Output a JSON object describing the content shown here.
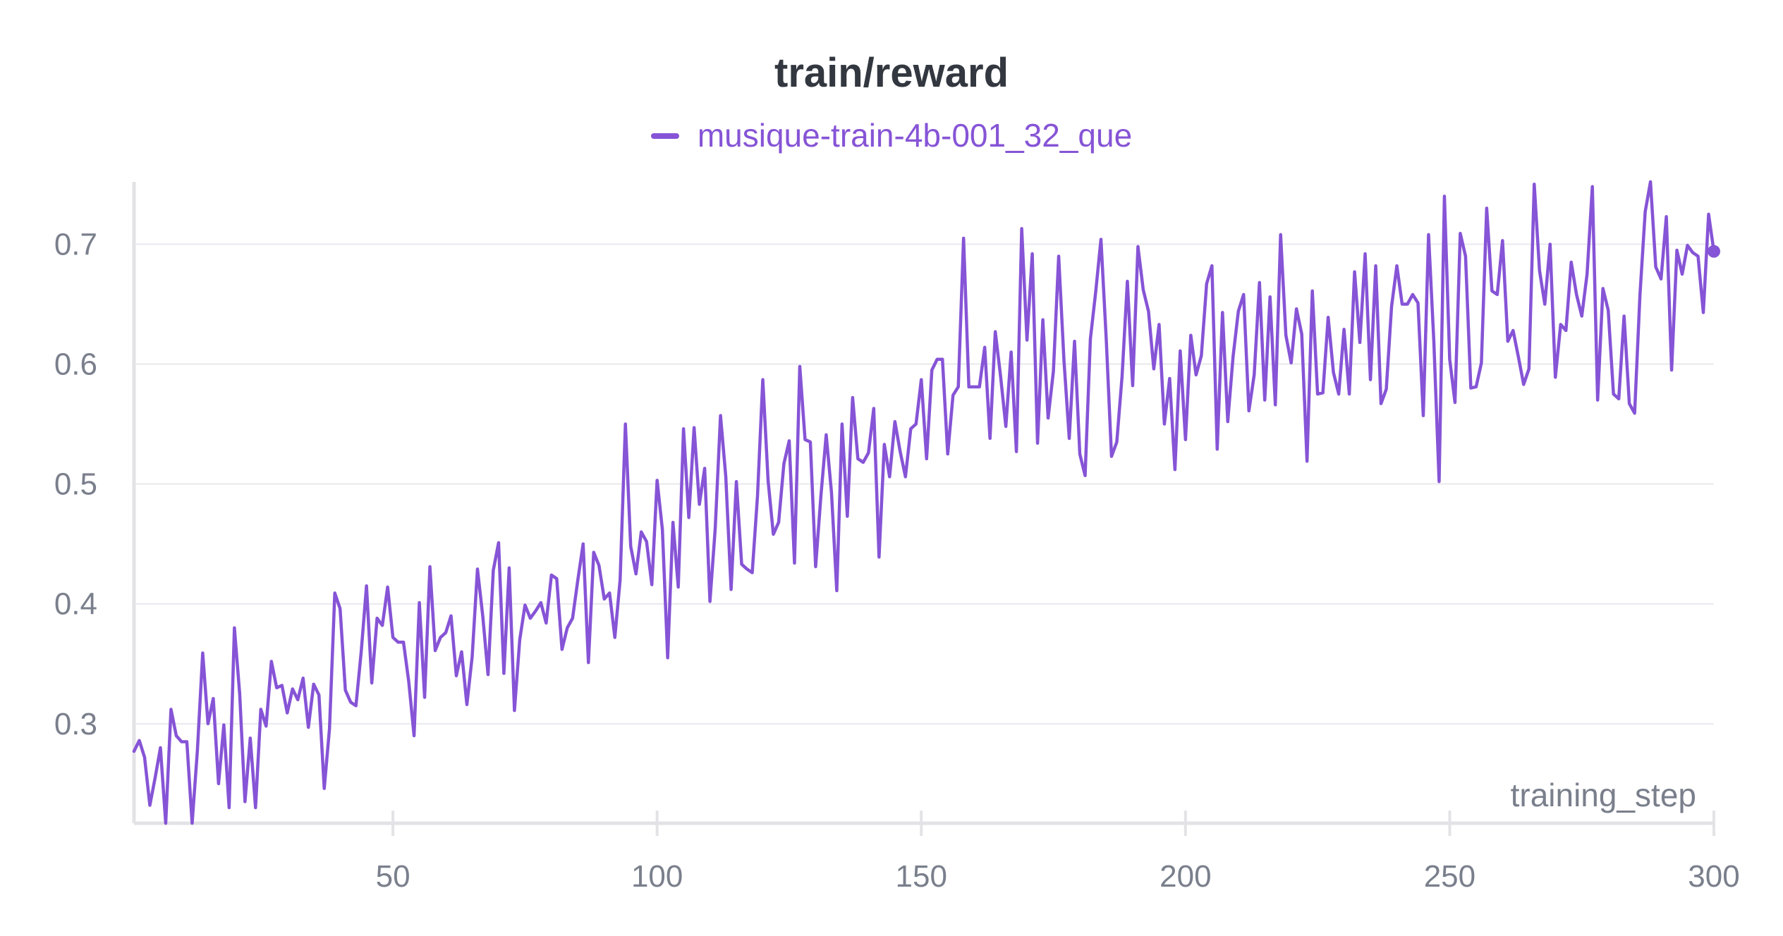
{
  "chart_data": {
    "type": "line",
    "title": "train/reward",
    "xlabel": "training_step",
    "ylabel": "",
    "xlim": [
      1,
      300
    ],
    "ylim": [
      0.217,
      0.752
    ],
    "xticks": [
      50,
      100,
      150,
      200,
      250,
      300
    ],
    "yticks": [
      0.3,
      0.4,
      0.5,
      0.6,
      0.7
    ],
    "grid": true,
    "legend_position": "top-center",
    "series": [
      {
        "name": "musique-train-4b-001_32_que",
        "color": "#8654d6",
        "x_start": 1,
        "x_step": 1,
        "values": [
          0.277,
          0.286,
          0.272,
          0.232,
          0.255,
          0.28,
          0.217,
          0.312,
          0.29,
          0.285,
          0.285,
          0.217,
          0.278,
          0.359,
          0.3,
          0.321,
          0.25,
          0.299,
          0.23,
          0.38,
          0.325,
          0.235,
          0.288,
          0.23,
          0.312,
          0.298,
          0.352,
          0.33,
          0.332,
          0.309,
          0.329,
          0.32,
          0.338,
          0.297,
          0.333,
          0.324,
          0.246,
          0.296,
          0.409,
          0.396,
          0.328,
          0.318,
          0.315,
          0.36,
          0.415,
          0.334,
          0.388,
          0.382,
          0.414,
          0.372,
          0.368,
          0.368,
          0.335,
          0.29,
          0.401,
          0.322,
          0.431,
          0.361,
          0.372,
          0.376,
          0.39,
          0.34,
          0.36,
          0.316,
          0.356,
          0.429,
          0.39,
          0.341,
          0.428,
          0.451,
          0.342,
          0.43,
          0.311,
          0.37,
          0.399,
          0.388,
          0.394,
          0.401,
          0.384,
          0.424,
          0.421,
          0.362,
          0.38,
          0.388,
          0.42,
          0.45,
          0.351,
          0.443,
          0.432,
          0.404,
          0.409,
          0.372,
          0.42,
          0.55,
          0.448,
          0.425,
          0.46,
          0.452,
          0.416,
          0.503,
          0.462,
          0.355,
          0.468,
          0.414,
          0.546,
          0.472,
          0.547,
          0.483,
          0.513,
          0.402,
          0.463,
          0.557,
          0.506,
          0.412,
          0.502,
          0.433,
          0.429,
          0.426,
          0.49,
          0.587,
          0.503,
          0.458,
          0.468,
          0.517,
          0.536,
          0.434,
          0.598,
          0.537,
          0.535,
          0.431,
          0.49,
          0.541,
          0.493,
          0.411,
          0.55,
          0.473,
          0.572,
          0.521,
          0.518,
          0.526,
          0.563,
          0.439,
          0.533,
          0.506,
          0.552,
          0.527,
          0.506,
          0.546,
          0.55,
          0.587,
          0.521,
          0.595,
          0.604,
          0.604,
          0.525,
          0.574,
          0.581,
          0.705,
          0.581,
          0.581,
          0.581,
          0.614,
          0.538,
          0.627,
          0.59,
          0.548,
          0.61,
          0.527,
          0.713,
          0.62,
          0.692,
          0.534,
          0.637,
          0.555,
          0.594,
          0.69,
          0.603,
          0.538,
          0.619,
          0.525,
          0.507,
          0.621,
          0.66,
          0.704,
          0.621,
          0.523,
          0.535,
          0.59,
          0.669,
          0.582,
          0.698,
          0.662,
          0.644,
          0.596,
          0.633,
          0.55,
          0.588,
          0.512,
          0.611,
          0.537,
          0.624,
          0.591,
          0.607,
          0.667,
          0.682,
          0.529,
          0.643,
          0.552,
          0.606,
          0.644,
          0.658,
          0.561,
          0.591,
          0.668,
          0.57,
          0.656,
          0.566,
          0.708,
          0.624,
          0.601,
          0.646,
          0.625,
          0.519,
          0.661,
          0.575,
          0.576,
          0.639,
          0.593,
          0.575,
          0.629,
          0.575,
          0.677,
          0.618,
          0.692,
          0.587,
          0.682,
          0.567,
          0.579,
          0.648,
          0.682,
          0.65,
          0.65,
          0.658,
          0.651,
          0.557,
          0.708,
          0.619,
          0.502,
          0.74,
          0.604,
          0.568,
          0.709,
          0.69,
          0.58,
          0.581,
          0.601,
          0.73,
          0.661,
          0.658,
          0.703,
          0.619,
          0.628,
          0.606,
          0.583,
          0.596,
          0.75,
          0.678,
          0.65,
          0.7,
          0.589,
          0.633,
          0.628,
          0.685,
          0.658,
          0.64,
          0.675,
          0.748,
          0.57,
          0.663,
          0.645,
          0.575,
          0.571,
          0.64,
          0.567,
          0.559,
          0.657,
          0.727,
          0.752,
          0.681,
          0.671,
          0.723,
          0.595,
          0.695,
          0.675,
          0.699,
          0.693,
          0.69,
          0.643,
          0.725,
          0.694
        ]
      }
    ]
  }
}
